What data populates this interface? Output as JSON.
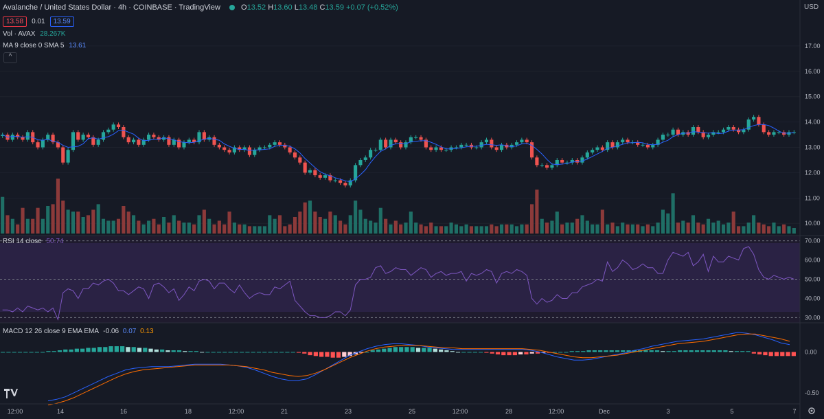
{
  "header": {
    "title": "Avalanche / United States Dollar · 4h · COINBASE · TradingView",
    "o_label": "O",
    "o": "13.52",
    "h_label": "H",
    "h": "13.60",
    "l_label": "L",
    "l": "13.48",
    "c_label": "C",
    "c": "13.59",
    "change": "+0.07 (+0.52%)",
    "bid": "13.58",
    "spread": "0.01",
    "ask": "13.59",
    "vol_label": "Vol · AVAX",
    "vol_value": "28.267K",
    "ma_label": "MA 9 close 0 SMA 5",
    "ma_value": "13.61",
    "currency": "USD",
    "collapse_glyph": "^"
  },
  "colors": {
    "up": "#26a69a",
    "down": "#ef5350",
    "ma": "#2962ff",
    "rsi": "#7e57c2",
    "macd": "#2962ff",
    "signal": "#ff6d00",
    "bg": "#161a25"
  },
  "chart_data": [
    {
      "type": "candlestick",
      "title": "Avalanche / United States Dollar · 4h · COINBASE",
      "ylim": [
        9.6,
        18.0
      ],
      "y_ticks": [
        "10.00",
        "11.00",
        "12.00",
        "13.00",
        "14.00",
        "15.00",
        "16.00",
        "17.00"
      ],
      "x_ticks": [
        "12:00",
        "14",
        "16",
        "18",
        "12:00",
        "21",
        "23",
        "25",
        "12:00",
        "28",
        "12:00",
        "Dec",
        "3",
        "5",
        "7"
      ],
      "close": [
        13.5,
        13.3,
        13.5,
        13.4,
        13.3,
        13.6,
        13.2,
        13.0,
        13.3,
        13.5,
        13.2,
        13.0,
        12.4,
        12.9,
        13.6,
        13.3,
        13.5,
        13.4,
        13.1,
        13.3,
        13.6,
        13.7,
        13.9,
        13.8,
        13.4,
        13.2,
        13.3,
        13.1,
        13.3,
        13.5,
        13.4,
        13.3,
        13.4,
        13.1,
        13.3,
        13.0,
        13.2,
        13.3,
        13.2,
        13.6,
        13.3,
        13.4,
        13.1,
        13.0,
        12.9,
        12.8,
        13.0,
        12.9,
        13.0,
        12.7,
        12.9,
        13.0,
        13.0,
        13.1,
        13.2,
        13.1,
        13.0,
        12.8,
        12.6,
        12.4,
        12.0,
        12.1,
        11.9,
        11.8,
        11.9,
        11.7,
        11.7,
        11.6,
        11.5,
        11.7,
        12.3,
        12.5,
        12.6,
        12.9,
        12.9,
        13.3,
        13.0,
        13.3,
        13.2,
        13.0,
        13.2,
        13.4,
        13.4,
        13.3,
        13.0,
        12.9,
        13.0,
        12.9,
        12.9,
        13.0,
        13.0,
        13.1,
        13.1,
        13.0,
        13.0,
        13.2,
        13.3,
        13.0,
        12.9,
        13.1,
        13.0,
        13.1,
        13.2,
        13.3,
        13.2,
        12.6,
        12.3,
        12.3,
        12.2,
        12.3,
        12.5,
        12.4,
        12.4,
        12.5,
        12.4,
        12.6,
        12.8,
        12.9,
        13.0,
        12.9,
        13.2,
        13.0,
        13.2,
        13.3,
        13.2,
        13.2,
        13.1,
        13.1,
        13.0,
        13.1,
        13.3,
        13.5,
        13.5,
        13.7,
        13.5,
        13.6,
        13.5,
        13.8,
        13.6,
        13.4,
        13.5,
        13.6,
        13.6,
        13.7,
        13.8,
        13.7,
        13.6,
        13.7,
        14.1,
        14.2,
        13.9,
        13.6,
        13.5,
        13.6,
        13.6,
        13.5,
        13.6,
        13.6
      ],
      "volume": [
        2.0,
        1.0,
        0.8,
        0.5,
        1.4,
        0.8,
        0.8,
        1.4,
        0.8,
        1.5,
        1.6,
        3.0,
        1.8,
        1.3,
        1.2,
        1.2,
        0.9,
        1.0,
        1.3,
        1.6,
        0.8,
        0.7,
        0.7,
        0.8,
        1.5,
        1.2,
        1.0,
        0.7,
        0.5,
        0.7,
        0.8,
        0.5,
        0.9,
        0.6,
        1.0,
        0.7,
        0.6,
        0.6,
        0.5,
        1.0,
        1.3,
        0.8,
        0.5,
        0.7,
        0.5,
        1.2,
        0.6,
        0.5,
        0.5,
        0.4,
        0.4,
        0.4,
        0.4,
        1.0,
        0.8,
        1.0,
        0.4,
        0.5,
        0.9,
        1.2,
        1.7,
        1.8,
        1.2,
        0.9,
        0.8,
        1.2,
        1.0,
        0.7,
        0.5,
        1.0,
        1.8,
        1.3,
        0.8,
        0.7,
        0.6,
        1.4,
        0.8,
        0.5,
        0.7,
        0.5,
        0.6,
        1.2,
        0.6,
        0.5,
        0.4,
        0.6,
        0.4,
        0.4,
        0.4,
        0.6,
        0.5,
        0.4,
        0.5,
        0.4,
        0.4,
        0.4,
        0.4,
        0.5,
        0.4,
        0.5,
        0.5,
        0.5,
        0.4,
        0.5,
        0.5,
        1.6,
        2.4,
        0.8,
        0.6,
        0.7,
        1.2,
        0.5,
        0.6,
        0.6,
        0.8,
        1.0,
        0.7,
        0.5,
        0.5,
        1.3,
        0.5,
        0.6,
        0.4,
        0.6,
        0.5,
        0.5,
        0.5,
        0.4,
        0.5,
        0.4,
        0.6,
        1.3,
        1.1,
        2.2,
        0.6,
        0.7,
        0.6,
        1.0,
        0.6,
        0.5,
        0.8,
        0.6,
        0.7,
        0.5,
        0.6,
        1.2,
        0.4,
        0.4,
        0.6,
        1.0,
        0.6,
        0.5,
        0.4,
        0.6,
        0.4,
        0.5,
        0.4,
        0.3
      ]
    },
    {
      "type": "line",
      "title": "RSI 14 close",
      "value": "50.74",
      "ylim": [
        28,
        72
      ],
      "y_ticks": [
        "30.00",
        "40.00",
        "50.00",
        "60.00",
        "70.00"
      ],
      "bands": [
        30,
        50,
        70
      ],
      "values": [
        34,
        34,
        33,
        35,
        33,
        36,
        35,
        34,
        35,
        33,
        35,
        29,
        43,
        45,
        44,
        40,
        45,
        45,
        48,
        47,
        49,
        50,
        48,
        44,
        44,
        42,
        44,
        46,
        45,
        40,
        47,
        48,
        46,
        43,
        45,
        39,
        42,
        46,
        44,
        49,
        50,
        49,
        45,
        48,
        48,
        45,
        43,
        47,
        43,
        40,
        42,
        43,
        42,
        42,
        46,
        45,
        47,
        49,
        39,
        36,
        33,
        31,
        31,
        30,
        30,
        31,
        33,
        33,
        31,
        34,
        47,
        50,
        50,
        51,
        56,
        57,
        53,
        54,
        56,
        55,
        55,
        52,
        54,
        56,
        55,
        51,
        53,
        54,
        52,
        53,
        53,
        54,
        49,
        53,
        52,
        53,
        55,
        54,
        48,
        53,
        54,
        53,
        55,
        54,
        52,
        40,
        37,
        40,
        38,
        39,
        42,
        40,
        40,
        43,
        43,
        46,
        47,
        48,
        50,
        49,
        59,
        54,
        56,
        60,
        58,
        55,
        56,
        58,
        56,
        56,
        53,
        53,
        60,
        64,
        63,
        62,
        64,
        57,
        59,
        63,
        54,
        62,
        59,
        59,
        62,
        61,
        60,
        66,
        67,
        63,
        55,
        51,
        50,
        52,
        51,
        50,
        51,
        50
      ]
    },
    {
      "type": "bar+line",
      "title": "MACD 12 26 close 9 EMA EMA",
      "values_display": [
        "-0.06",
        "0.07",
        "0.13"
      ],
      "ylim": [
        -0.62,
        0.34
      ],
      "y_ticks": [
        "-0.50",
        "0.00"
      ],
      "histogram": [
        0.0,
        0.0,
        0.0,
        0.0,
        0.0,
        0.0,
        0.0,
        0.0,
        0.01,
        0.01,
        0.02,
        0.03,
        0.03,
        0.04,
        0.04,
        0.05,
        0.05,
        0.06,
        0.06,
        0.07,
        0.07,
        0.07,
        0.06,
        0.06,
        0.05,
        0.05,
        0.04,
        0.03,
        0.03,
        0.02,
        0.02,
        0.02,
        0.01,
        0.01,
        0.01,
        0.0,
        0.0,
        0.0,
        0.0,
        0.0,
        0.0,
        0.0,
        0.0,
        0.0,
        0.0,
        0.0,
        0.0,
        0.0,
        0.0,
        0.0,
        0.0,
        0.0,
        -0.01,
        -0.02,
        -0.04,
        -0.05,
        -0.06,
        -0.06,
        -0.07,
        -0.07,
        -0.06,
        -0.05,
        -0.03,
        -0.01,
        0.0,
        0.02,
        0.03,
        0.04,
        0.05,
        0.06,
        0.06,
        0.06,
        0.06,
        0.05,
        0.05,
        0.05,
        0.04,
        0.03,
        0.02,
        0.01,
        0.0,
        0.0,
        0.0,
        0.0,
        0.0,
        -0.01,
        -0.02,
        -0.03,
        -0.04,
        -0.04,
        -0.04,
        -0.03,
        -0.03,
        -0.02,
        -0.02,
        -0.01,
        -0.01,
        0.0,
        0.0,
        0.0,
        0.01,
        0.01,
        0.01,
        0.02,
        0.02,
        0.02,
        0.02,
        0.02,
        0.02,
        0.02,
        0.02,
        0.02,
        0.02,
        0.02,
        0.02,
        0.02,
        0.01,
        0.01,
        0.01,
        0.02,
        0.02,
        0.02,
        0.02,
        0.02,
        0.02,
        0.02,
        0.02,
        0.02,
        0.01,
        0.01,
        0.01,
        0.01,
        -0.02,
        -0.03,
        -0.04,
        -0.05,
        -0.05,
        -0.05,
        -0.05,
        -0.05
      ],
      "macd": [
        -0.6,
        -0.58,
        -0.55,
        -0.5,
        -0.45,
        -0.4,
        -0.35,
        -0.3,
        -0.26,
        -0.22,
        -0.2,
        -0.19,
        -0.18,
        -0.18,
        -0.18,
        -0.17,
        -0.16,
        -0.15,
        -0.15,
        -0.15,
        -0.15,
        -0.16,
        -0.17,
        -0.19,
        -0.22,
        -0.26,
        -0.3,
        -0.33,
        -0.35,
        -0.35,
        -0.33,
        -0.28,
        -0.22,
        -0.16,
        -0.1,
        -0.04,
        0.0,
        0.04,
        0.07,
        0.09,
        0.1,
        0.1,
        0.09,
        0.08,
        0.06,
        0.05,
        0.04,
        0.03,
        0.03,
        0.03,
        0.03,
        0.03,
        0.03,
        0.03,
        0.03,
        0.03,
        0.02,
        0.0,
        -0.03,
        -0.06,
        -0.08,
        -0.1,
        -0.1,
        -0.09,
        -0.07,
        -0.05,
        -0.03,
        -0.01,
        0.02,
        0.04,
        0.07,
        0.09,
        0.11,
        0.13,
        0.14,
        0.15,
        0.16,
        0.18,
        0.2,
        0.22,
        0.24,
        0.23,
        0.21,
        0.18,
        0.15,
        0.11,
        0.09
      ],
      "signal": [
        -0.65,
        -0.63,
        -0.6,
        -0.56,
        -0.51,
        -0.46,
        -0.41,
        -0.36,
        -0.31,
        -0.27,
        -0.24,
        -0.22,
        -0.21,
        -0.2,
        -0.19,
        -0.18,
        -0.17,
        -0.16,
        -0.16,
        -0.16,
        -0.16,
        -0.16,
        -0.17,
        -0.18,
        -0.2,
        -0.22,
        -0.25,
        -0.27,
        -0.29,
        -0.3,
        -0.29,
        -0.26,
        -0.22,
        -0.17,
        -0.12,
        -0.07,
        -0.03,
        0.01,
        0.04,
        0.06,
        0.07,
        0.08,
        0.08,
        0.08,
        0.07,
        0.06,
        0.05,
        0.05,
        0.04,
        0.04,
        0.04,
        0.04,
        0.04,
        0.04,
        0.04,
        0.04,
        0.03,
        0.02,
        0.0,
        -0.02,
        -0.04,
        -0.06,
        -0.07,
        -0.07,
        -0.06,
        -0.05,
        -0.04,
        -0.02,
        0.0,
        0.02,
        0.04,
        0.06,
        0.08,
        0.1,
        0.11,
        0.12,
        0.13,
        0.15,
        0.17,
        0.19,
        0.21,
        0.22,
        0.22,
        0.2,
        0.18,
        0.16,
        0.13
      ]
    }
  ]
}
